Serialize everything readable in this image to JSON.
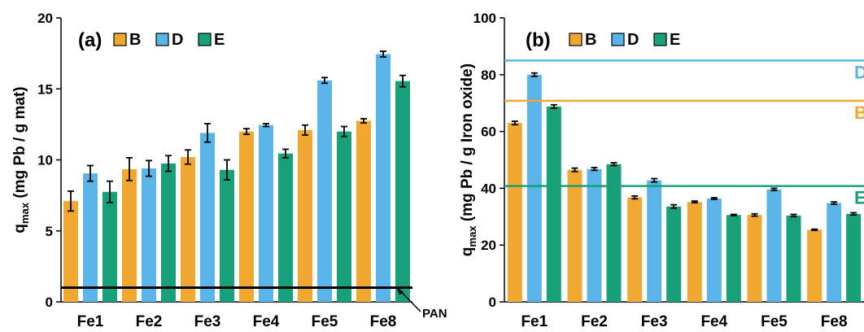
{
  "chart_data": [
    {
      "type": "bar",
      "panel_label": "(a)",
      "ylabel_main": "q",
      "ylabel_sub": "max",
      "ylabel_rest": " (mg Pb / g mat)",
      "ylim": [
        0,
        20
      ],
      "yticks": [
        0,
        5,
        10,
        15,
        20
      ],
      "categories": [
        "Fe1",
        "Fe2",
        "Fe3",
        "Fe4",
        "Fe5",
        "Fe8"
      ],
      "series": [
        {
          "name": "B",
          "color": "#f0a830",
          "values": [
            7.1,
            9.35,
            10.2,
            12.0,
            12.1,
            12.75
          ],
          "errors": [
            0.7,
            0.8,
            0.5,
            0.2,
            0.35,
            0.15
          ]
        },
        {
          "name": "D",
          "color": "#5ab4e8",
          "values": [
            9.05,
            9.4,
            11.9,
            12.45,
            15.6,
            17.45
          ],
          "errors": [
            0.55,
            0.55,
            0.65,
            0.1,
            0.2,
            0.2
          ]
        },
        {
          "name": "E",
          "color": "#18a07a",
          "values": [
            7.75,
            9.75,
            9.3,
            10.45,
            12.0,
            15.55
          ],
          "errors": [
            0.75,
            0.55,
            0.7,
            0.3,
            0.35,
            0.4
          ]
        }
      ],
      "reference_lines": [
        {
          "label": "PAN",
          "value": 1.0,
          "color": "#000000"
        }
      ],
      "grid": false,
      "legend": "top-left"
    },
    {
      "type": "bar",
      "panel_label": "(b)",
      "ylabel_main": "q",
      "ylabel_sub": "max",
      "ylabel_rest": " (mg Pb / g Iron oxide)",
      "ylim": [
        0,
        100
      ],
      "yticks": [
        0,
        20,
        40,
        60,
        80,
        100
      ],
      "categories": [
        "Fe1",
        "Fe2",
        "Fe3",
        "Fe4",
        "Fe5",
        "Fe8"
      ],
      "series": [
        {
          "name": "B",
          "color": "#f0a830",
          "values": [
            63.0,
            46.5,
            36.8,
            35.2,
            30.6,
            25.4
          ],
          "errors": [
            0.6,
            0.6,
            0.5,
            0.3,
            0.4,
            0.2
          ]
        },
        {
          "name": "D",
          "color": "#5ab4e8",
          "values": [
            80.0,
            46.8,
            42.8,
            36.4,
            39.6,
            34.8
          ],
          "errors": [
            0.6,
            0.5,
            0.6,
            0.3,
            0.4,
            0.4
          ]
        },
        {
          "name": "E",
          "color": "#18a07a",
          "values": [
            68.8,
            48.5,
            33.6,
            30.6,
            30.4,
            31.0
          ],
          "errors": [
            0.6,
            0.5,
            0.6,
            0.2,
            0.4,
            0.4
          ]
        }
      ],
      "reference_lines": [
        {
          "label": "D",
          "value": 85.0,
          "color": "#5ab4e8"
        },
        {
          "label": "B",
          "value": 70.8,
          "color": "#f0a830"
        },
        {
          "label": "E",
          "value": 40.8,
          "color": "#18a07a"
        }
      ],
      "grid": false,
      "legend": "top-left"
    }
  ]
}
